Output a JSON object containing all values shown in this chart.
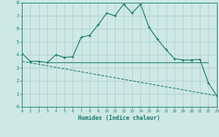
{
  "xlabel": "Humidex (Indice chaleur)",
  "bg_color": "#cde8e5",
  "grid_color": "#aecfcc",
  "line_color": "#1a7a6e",
  "x_min": 0,
  "x_max": 23,
  "y_min": 0,
  "y_max": 8,
  "curve1_x": [
    0,
    1,
    2,
    3,
    4,
    5,
    6,
    7,
    8,
    9,
    10,
    11,
    12,
    13,
    14,
    15,
    16,
    17,
    18,
    19,
    20,
    21,
    22,
    23
  ],
  "curve1_y": [
    4.1,
    3.5,
    3.5,
    3.4,
    4.0,
    3.8,
    3.85,
    5.35,
    5.5,
    6.3,
    7.2,
    7.0,
    7.9,
    7.2,
    7.9,
    6.1,
    5.2,
    4.4,
    3.7,
    3.6,
    3.6,
    3.65,
    1.85,
    0.85
  ],
  "curve2_x": [
    0,
    23
  ],
  "curve2_y": [
    3.5,
    0.85
  ],
  "curve3_x": [
    3,
    22
  ],
  "curve3_y": [
    3.4,
    3.4
  ]
}
